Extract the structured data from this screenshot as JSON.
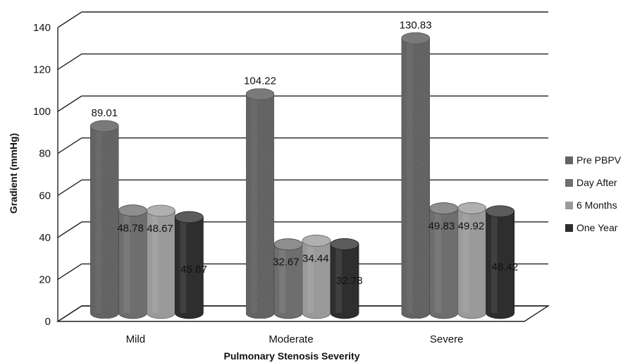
{
  "chart_data": {
    "type": "bar",
    "variant": "3d-cylinder",
    "title": "",
    "xlabel": "Pulmonary Stenosis Severity",
    "ylabel": "Gradient (mmHg)",
    "ylim": [
      0,
      140
    ],
    "yticks": [
      "0",
      "20",
      "40",
      "60",
      "80",
      "100",
      "120",
      "140"
    ],
    "grid": true,
    "legend_position": "right",
    "categories": [
      "Mild",
      "Moderate",
      "Severe"
    ],
    "series": [
      {
        "name": "Pre PBPV",
        "color": "#555555",
        "texture": "speckled",
        "values": [
          89.01,
          104.22,
          130.83
        ],
        "labels": [
          "89.01",
          "104.22",
          "130.83"
        ]
      },
      {
        "name": "Day After",
        "color": "#6e6e6e",
        "texture": "solid",
        "values": [
          48.78,
          32.67,
          49.83
        ],
        "labels": [
          "48.78",
          "32.67",
          "49.83"
        ]
      },
      {
        "name": "6 Months",
        "color": "#9a9a9a",
        "texture": "solid",
        "values": [
          48.67,
          34.44,
          49.92
        ],
        "labels": [
          "48.67",
          "34.44",
          "49.92"
        ]
      },
      {
        "name": "One Year",
        "color": "#2e2e2e",
        "texture": "solid",
        "values": [
          45.67,
          32.78,
          48.42
        ],
        "labels": [
          "45.67",
          "32.78",
          "48.42"
        ]
      }
    ]
  }
}
